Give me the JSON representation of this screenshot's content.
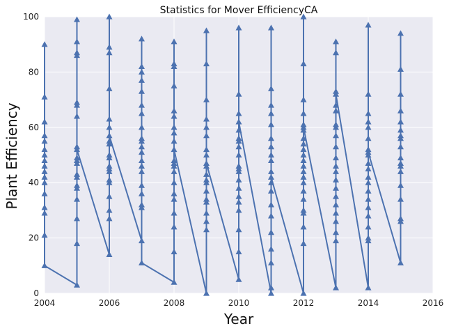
{
  "chart_data": {
    "type": "line",
    "title": "Statistics for Mover EfficiencyCA",
    "xlabel": "Year",
    "ylabel": "Plant Efficiency",
    "xlim": [
      2004,
      2016
    ],
    "ylim": [
      0,
      100
    ],
    "x_ticks": [
      "2004",
      "2006",
      "2008",
      "2010",
      "2012",
      "2014",
      "2016"
    ],
    "y_ticks": [
      "0",
      "20",
      "40",
      "60",
      "80",
      "100"
    ],
    "grid": true,
    "marker": "triangle",
    "line_color": "#4c72b0",
    "background_color": "#eaeaf2",
    "series": [
      {
        "x": [
          2004,
          2004,
          2004,
          2004,
          2004,
          2004,
          2004,
          2004,
          2004,
          2004,
          2004,
          2004,
          2004,
          2004,
          2004,
          2004,
          2004,
          2004,
          2005,
          2005,
          2005,
          2005,
          2005,
          2005,
          2005,
          2005,
          2005,
          2005,
          2005,
          2005,
          2005,
          2005,
          2005,
          2005,
          2005,
          2005,
          2005,
          2005,
          2005,
          2005,
          2006,
          2006,
          2006,
          2006,
          2006,
          2006,
          2006,
          2006,
          2006,
          2006,
          2006,
          2006,
          2006,
          2006,
          2006,
          2006,
          2006,
          2006,
          2006,
          2006,
          2007,
          2007,
          2007,
          2007,
          2007,
          2007,
          2007,
          2007,
          2007,
          2007,
          2007,
          2007,
          2007,
          2007,
          2007,
          2007,
          2007,
          2007,
          2007,
          2007,
          2007,
          2008,
          2008,
          2008,
          2008,
          2008,
          2008,
          2008,
          2008,
          2008,
          2008,
          2008,
          2008,
          2008,
          2008,
          2008,
          2008,
          2008,
          2008,
          2008,
          2008,
          2008,
          2008,
          2009,
          2009,
          2009,
          2009,
          2009,
          2009,
          2009,
          2009,
          2009,
          2009,
          2009,
          2009,
          2009,
          2009,
          2009,
          2009,
          2009,
          2009,
          2009,
          2009,
          2009,
          2010,
          2010,
          2010,
          2010,
          2010,
          2010,
          2010,
          2010,
          2010,
          2010,
          2010,
          2010,
          2010,
          2010,
          2010,
          2010,
          2010,
          2010,
          2010,
          2010,
          2010,
          2010,
          2011,
          2011,
          2011,
          2011,
          2011,
          2011,
          2011,
          2011,
          2011,
          2011,
          2011,
          2011,
          2011,
          2011,
          2011,
          2011,
          2011,
          2011,
          2011,
          2011,
          2011,
          2011,
          2012,
          2012,
          2012,
          2012,
          2012,
          2012,
          2012,
          2012,
          2012,
          2012,
          2012,
          2012,
          2012,
          2012,
          2012,
          2012,
          2012,
          2012,
          2012,
          2012,
          2012,
          2012,
          2012,
          2012,
          2013,
          2013,
          2013,
          2013,
          2013,
          2013,
          2013,
          2013,
          2013,
          2013,
          2013,
          2013,
          2013,
          2013,
          2013,
          2013,
          2013,
          2013,
          2013,
          2013,
          2013,
          2013,
          2013,
          2014,
          2014,
          2014,
          2014,
          2014,
          2014,
          2014,
          2014,
          2014,
          2014,
          2014,
          2014,
          2014,
          2014,
          2014,
          2014,
          2014,
          2014,
          2014,
          2014,
          2014,
          2014,
          2015,
          2015,
          2015,
          2015,
          2015,
          2015,
          2015,
          2015,
          2015,
          2015,
          2015,
          2015,
          2015,
          2015,
          2015,
          2015,
          2015,
          2015,
          2015,
          2015
        ],
        "y": [
          10,
          90,
          71,
          62,
          57,
          55,
          52,
          50,
          48,
          46,
          44,
          42,
          40,
          36,
          31,
          29,
          21,
          10,
          3,
          99,
          91,
          87,
          86,
          69,
          68,
          64,
          53,
          52,
          49,
          43,
          42,
          39,
          38,
          34,
          27,
          18,
          3,
          48,
          47,
          52,
          14,
          100,
          89,
          87,
          74,
          63,
          60,
          55,
          54,
          50,
          49,
          46,
          41,
          40,
          35,
          30,
          27,
          45,
          44,
          57,
          19,
          92,
          82,
          80,
          77,
          73,
          68,
          65,
          60,
          56,
          55,
          53,
          51,
          48,
          46,
          44,
          39,
          36,
          32,
          31,
          11,
          4,
          91,
          83,
          82,
          75,
          66,
          64,
          58,
          55,
          48,
          47,
          46,
          44,
          40,
          36,
          34,
          29,
          24,
          15,
          4,
          60,
          52,
          0,
          95,
          83,
          70,
          63,
          60,
          57,
          52,
          50,
          46,
          43,
          41,
          40,
          37,
          34,
          33,
          29,
          26,
          23,
          0,
          47,
          5,
          96,
          72,
          65,
          62,
          59,
          56,
          55,
          50,
          46,
          44,
          41,
          38,
          35,
          33,
          30,
          23,
          15,
          5,
          45,
          53,
          62,
          0,
          96,
          74,
          68,
          65,
          61,
          56,
          53,
          50,
          48,
          44,
          40,
          37,
          32,
          28,
          22,
          16,
          11,
          2,
          0,
          22,
          42,
          0,
          100,
          83,
          70,
          65,
          61,
          59,
          56,
          54,
          52,
          50,
          48,
          46,
          44,
          42,
          40,
          37,
          34,
          30,
          29,
          24,
          18,
          0,
          60,
          2,
          91,
          87,
          73,
          68,
          66,
          61,
          57,
          53,
          49,
          46,
          44,
          41,
          38,
          35,
          32,
          29,
          26,
          22,
          19,
          2,
          60,
          72,
          2,
          97,
          72,
          65,
          62,
          60,
          56,
          52,
          50,
          47,
          45,
          42,
          40,
          37,
          34,
          31,
          28,
          24,
          20,
          19,
          2,
          51,
          11,
          94,
          94,
          81,
          72,
          66,
          62,
          59,
          56,
          53,
          49,
          47,
          46,
          44,
          39,
          34,
          27,
          26,
          11,
          57
        ]
      }
    ]
  }
}
